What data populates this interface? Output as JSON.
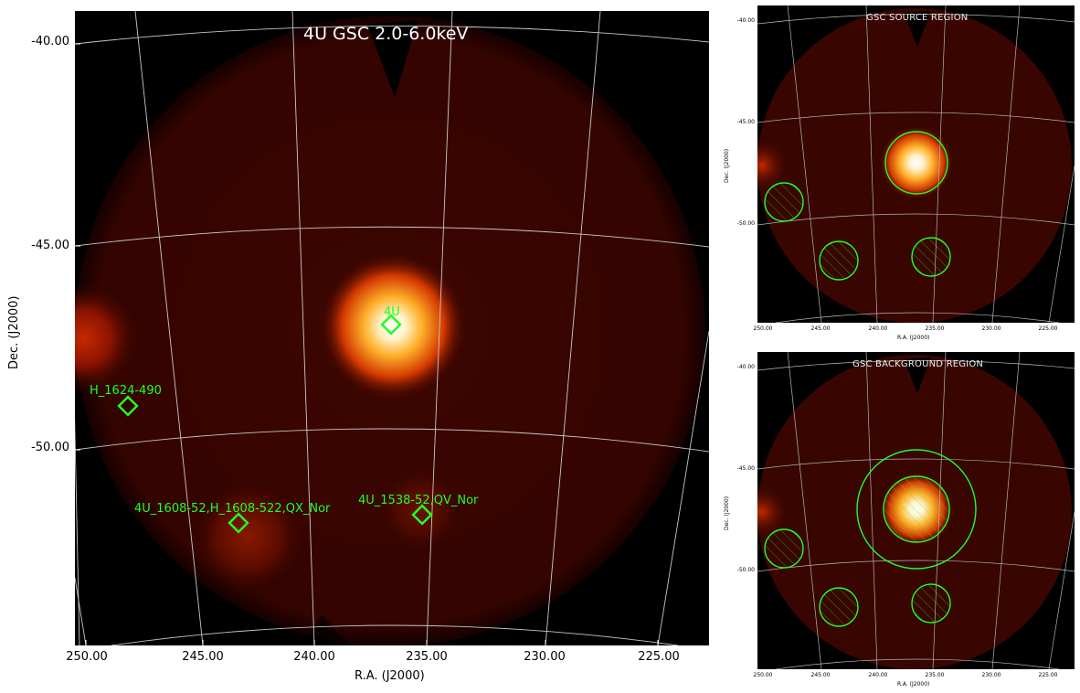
{
  "main": {
    "title": "4U GSC 2.0-6.0keV",
    "xlabel": "R.A. (J2000)",
    "ylabel": "Dec. (J2000)",
    "xticks": [
      "250.00",
      "245.00",
      "240.00",
      "235.00",
      "230.00",
      "225.00"
    ],
    "yticks": [
      "-40.00",
      "-45.00",
      "-50.00"
    ],
    "sources": [
      {
        "label": "4U"
      },
      {
        "label": "H_1624-490"
      },
      {
        "label": "4U_1608-52,H_1608-522,QX_Nor"
      },
      {
        "label": "4U_1538-52,QV_Nor"
      }
    ]
  },
  "source_panel": {
    "title": "GSC SOURCE REGION",
    "xlabel": "R.A. (J2000)",
    "ylabel": "Dec. (J2000)",
    "xticks": [
      "250.00",
      "245.00",
      "240.00",
      "235.00",
      "230.00",
      "225.00"
    ],
    "yticks": [
      "-40.00",
      "-45.00",
      "-50.00"
    ]
  },
  "background_panel": {
    "title": "GSC BACKGROUND REGION",
    "xlabel": "R.A. (J2000)",
    "ylabel": "Dec. (J2000)",
    "xticks": [
      "250.00",
      "245.00",
      "240.00",
      "235.00",
      "230.00",
      "225.00"
    ],
    "yticks": [
      "-40.00",
      "-45.00",
      "-50.00"
    ]
  },
  "colors": {
    "marker": "#22ff22",
    "grid": "#c8c8c8",
    "background": "#000000",
    "field": "#3a0500"
  }
}
